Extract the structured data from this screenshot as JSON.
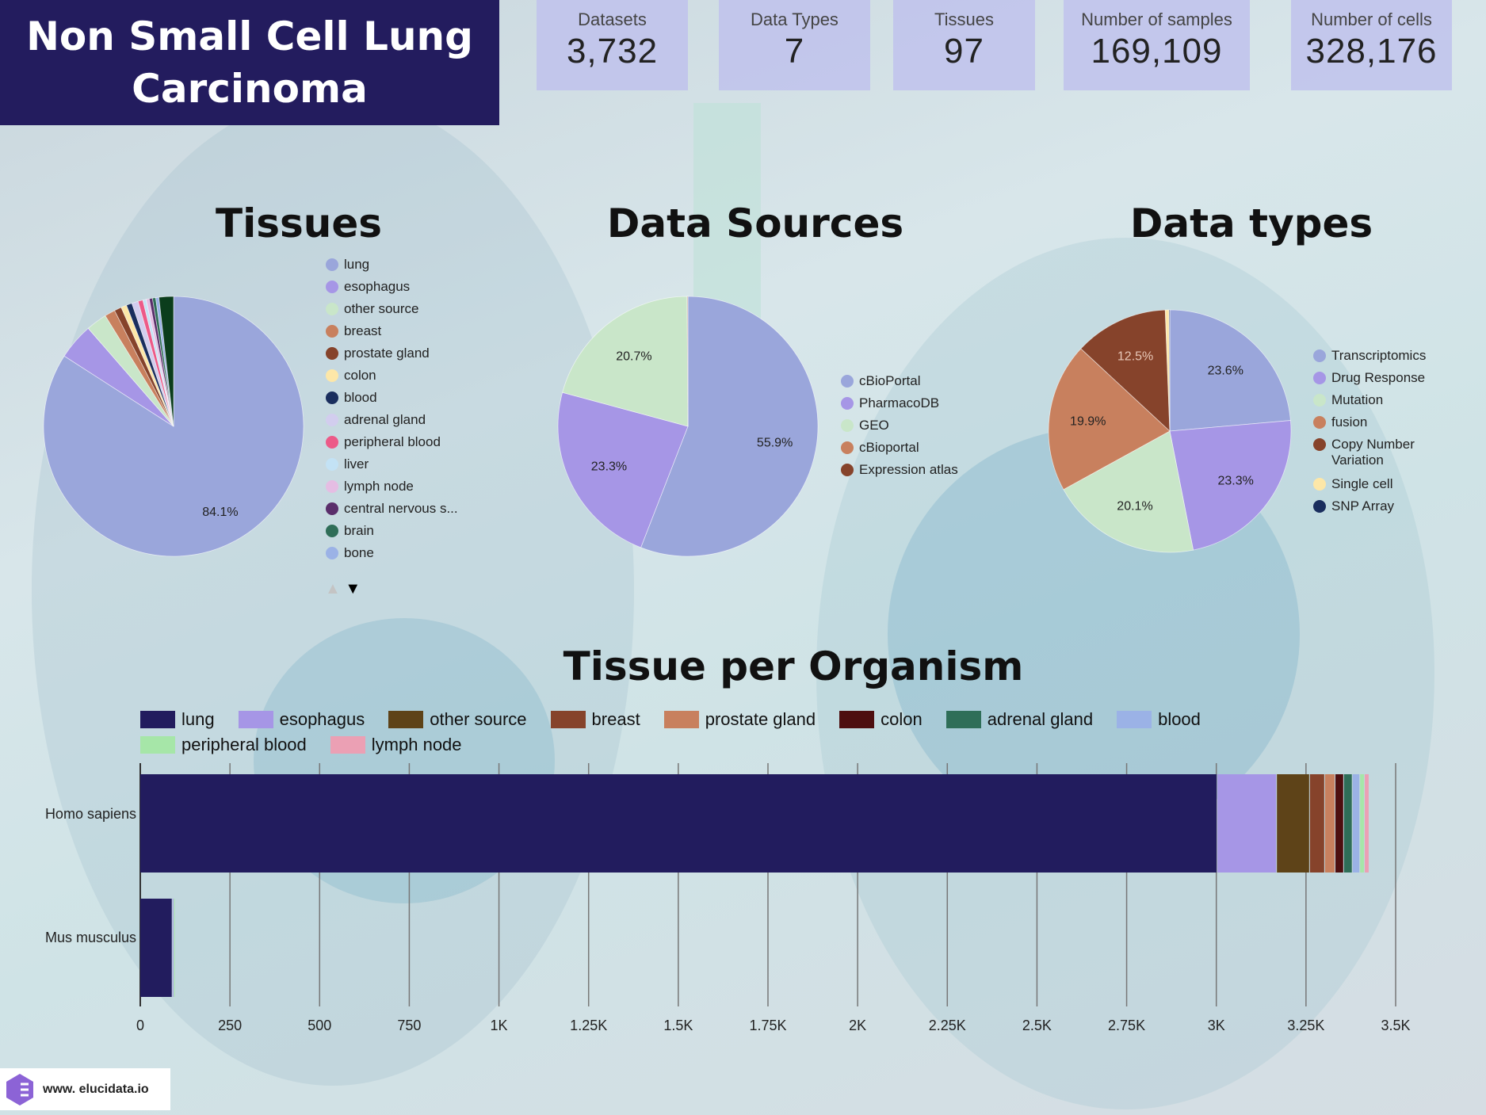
{
  "header": {
    "title": "Non Small Cell Lung Carcinoma"
  },
  "stats": [
    {
      "label": "Datasets",
      "value": "3,732"
    },
    {
      "label": "Data Types",
      "value": "7"
    },
    {
      "label": "Tissues",
      "value": "97"
    },
    {
      "label": "Number of samples",
      "value": "169,109"
    },
    {
      "label": "Number of cells",
      "value": "328,176"
    }
  ],
  "chart_data": [
    {
      "type": "pie",
      "title": "Tissues",
      "slices": [
        {
          "name": "lung",
          "value": 84.1,
          "label": "84.1%",
          "color": "#9aa6db"
        },
        {
          "name": "esophagus",
          "value": 4.5,
          "color": "#a696e6"
        },
        {
          "name": "other source",
          "value": 2.6,
          "color": "#c9e6c9"
        },
        {
          "name": "breast",
          "value": 1.3,
          "color": "#c8805e"
        },
        {
          "name": "prostate gland",
          "value": 0.9,
          "color": "#86432b"
        },
        {
          "name": "colon",
          "value": 0.7,
          "color": "#fde7a8"
        },
        {
          "name": "blood",
          "value": 0.7,
          "color": "#1a2e5e"
        },
        {
          "name": "adrenal gland",
          "value": 0.8,
          "color": "#d2cdee"
        },
        {
          "name": "peripheral blood",
          "value": 0.6,
          "color": "#ec5a88"
        },
        {
          "name": "liver",
          "value": 0.4,
          "color": "#c3e2f5"
        },
        {
          "name": "lymph node",
          "value": 0.4,
          "color": "#e5bde3"
        },
        {
          "name": "central nervous s...",
          "value": 0.4,
          "color": "#5a2e6b"
        },
        {
          "name": "brain",
          "value": 0.4,
          "color": "#2f6e58"
        },
        {
          "name": "bone",
          "value": 0.4,
          "color": "#9bb2e6"
        },
        {
          "name": "",
          "value": 1.8,
          "color": "#0b3d1c"
        }
      ],
      "legend_pager": {
        "up": "▲",
        "down": "▼"
      }
    },
    {
      "type": "pie",
      "title": "Data Sources",
      "slices": [
        {
          "name": "cBioPortal",
          "value": 55.9,
          "label": "55.9%",
          "color": "#9aa6db"
        },
        {
          "name": "PharmacoDB",
          "value": 23.3,
          "label": "23.3%",
          "color": "#a696e6"
        },
        {
          "name": "GEO",
          "value": 20.7,
          "label": "20.7%",
          "color": "#c9e6c9"
        },
        {
          "name": "cBioportal",
          "value": 0.05,
          "color": "#c8805e"
        },
        {
          "name": "Expression atlas",
          "value": 0.05,
          "color": "#86432b"
        }
      ]
    },
    {
      "type": "pie",
      "title": "Data types",
      "slices": [
        {
          "name": "Transcriptomics",
          "value": 23.6,
          "label": "23.6%",
          "color": "#9aa6db"
        },
        {
          "name": "Drug Response",
          "value": 23.3,
          "label": "23.3%",
          "color": "#a696e6"
        },
        {
          "name": "Mutation",
          "value": 20.1,
          "label": "20.1%",
          "color": "#c9e6c9"
        },
        {
          "name": "fusion",
          "value": 19.9,
          "label": "19.9%",
          "color": "#c8805e"
        },
        {
          "name": "Copy Number Variation",
          "value": 12.5,
          "label": "12.5%",
          "color": "#86432b"
        },
        {
          "name": "Single cell",
          "value": 0.5,
          "color": "#fde7a8"
        },
        {
          "name": "SNP Array",
          "value": 0.1,
          "color": "#1a2e5e"
        }
      ]
    },
    {
      "type": "bar",
      "orientation": "horizontal",
      "stacked": true,
      "title": "Tissue per Organism",
      "categories": [
        "Homo sapiens",
        "Mus musculus"
      ],
      "series": [
        {
          "name": "lung",
          "color": "#221c5e",
          "values": [
            3003,
            90
          ]
        },
        {
          "name": "esophagus",
          "color": "#a696e6",
          "values": [
            166,
            4
          ]
        },
        {
          "name": "other source",
          "color": "#5e4318",
          "values": [
            92,
            0
          ]
        },
        {
          "name": "breast",
          "color": "#86432b",
          "values": [
            42,
            0
          ]
        },
        {
          "name": "prostate gland",
          "color": "#c8805e",
          "values": [
            29,
            0
          ]
        },
        {
          "name": "colon",
          "color": "#4e0f10",
          "values": [
            24,
            0
          ]
        },
        {
          "name": "adrenal gland",
          "color": "#2f6e58",
          "values": [
            24,
            0
          ]
        },
        {
          "name": "blood",
          "color": "#9bb2e6",
          "values": [
            21,
            0
          ]
        },
        {
          "name": "peripheral blood",
          "color": "#a6e6a8",
          "values": [
            13,
            3
          ]
        },
        {
          "name": "lymph node",
          "color": "#eba0b4",
          "values": [
            13,
            0
          ]
        }
      ],
      "xlim": [
        0,
        3500
      ],
      "xticks": [
        0,
        250,
        500,
        750,
        1000,
        1250,
        1500,
        1750,
        2000,
        2250,
        2500,
        2750,
        3000,
        3250,
        3500
      ],
      "xtick_labels": [
        "0",
        "250",
        "500",
        "750",
        "1K",
        "1.25K",
        "1.5K",
        "1.75K",
        "2K",
        "2.25K",
        "2.5K",
        "2.75K",
        "3K",
        "3.25K",
        "3.5K"
      ],
      "grid": true,
      "legend": "top"
    }
  ],
  "footer": {
    "logo_text": "www. elucidata.io"
  }
}
